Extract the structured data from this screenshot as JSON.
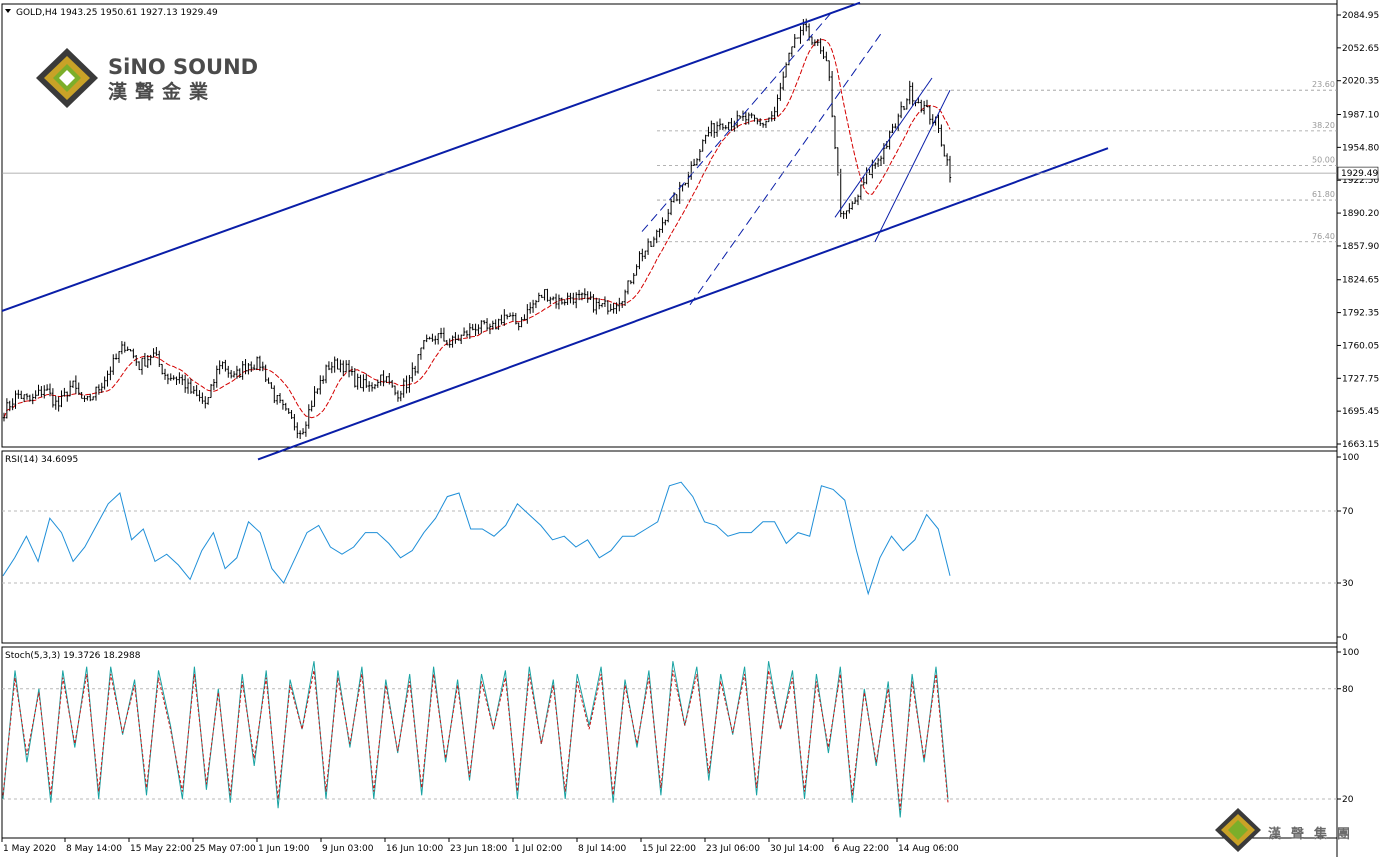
{
  "header": {
    "symbol_label": "GOLD,H4  1943.25 1950.61 1927.13 1929.49",
    "rsi_label": "RSI(14) 34.6095",
    "stoch_label": "Stoch(5,3,3) 19.3726 18.2988"
  },
  "logo": {
    "brand_en": "SiNO SOUND",
    "brand_cn": "漢聲金業",
    "footer_cn": "漢聲集團"
  },
  "colors": {
    "candle": "#000000",
    "ma": "#d40000",
    "channel": "#0a1ea8",
    "rsi": "#1f8fd8",
    "stoch_main": "#1aa3a3",
    "stoch_signal": "#c81818",
    "grid": "#b8b8b8",
    "logo_gold": "#c9a227"
  },
  "chart_data": [
    {
      "type": "candlestick",
      "title": "GOLD,H4",
      "ohlc_current": {
        "open": 1943.25,
        "high": 1950.61,
        "low": 1927.13,
        "close": 1929.49
      },
      "ylim": [
        1650,
        2098
      ],
      "y_ticks": [
        "2084.95",
        "2052.65",
        "2020.35",
        "1987.10",
        "1954.80",
        "1922.50",
        "1890.20",
        "1857.90",
        "1824.65",
        "1792.35",
        "1760.05",
        "1727.75",
        "1695.45",
        "1663.15"
      ],
      "current_price": "1929.49",
      "x_ticks": [
        "1 May 2020",
        "8 May 14:00",
        "15 May 22:00",
        "25 May 07:00",
        "1 Jun 19:00",
        "9 Jun 03:00",
        "16 Jun 10:00",
        "23 Jun 18:00",
        "1 Jul 02:00",
        "8 Jul 14:00",
        "15 Jul 22:00",
        "23 Jul 06:00",
        "30 Jul 14:00",
        "6 Aug 22:00",
        "14 Aug 06:00"
      ],
      "fib_levels": [
        {
          "label": "23.60",
          "price": 2011
        },
        {
          "label": "38.20",
          "price": 1971
        },
        {
          "label": "50.00",
          "price": 1937
        },
        {
          "label": "61.80",
          "price": 1903
        },
        {
          "label": "76.40",
          "price": 1862
        }
      ],
      "price_path": [
        1695,
        1712,
        1705,
        1718,
        1700,
        1722,
        1702,
        1718,
        1740,
        1762,
        1740,
        1752,
        1730,
        1728,
        1712,
        1702,
        1745,
        1728,
        1742,
        1742,
        1710,
        1690,
        1675,
        1712,
        1740,
        1742,
        1725,
        1718,
        1732,
        1712,
        1726,
        1758,
        1770,
        1762,
        1770,
        1780,
        1774,
        1790,
        1781,
        1798,
        1812,
        1803,
        1808,
        1805,
        1798,
        1800,
        1812,
        1848,
        1860,
        1890,
        1912,
        1940,
        1968,
        1980,
        1980,
        1983,
        1977,
        1988,
        2040,
        2072,
        2060,
        2030,
        1882,
        1902,
        1930,
        1950,
        1978,
        2010,
        1995,
        1978,
        1931
      ]
    },
    {
      "type": "line",
      "title": "RSI(14) 34.6095",
      "ylim": [
        0,
        100
      ],
      "y_ticks": [
        "100",
        "70",
        "30",
        "0"
      ],
      "levels": [
        70,
        30
      ],
      "values": [
        34,
        44,
        56,
        42,
        66,
        58,
        42,
        50,
        62,
        74,
        80,
        54,
        60,
        42,
        46,
        40,
        32,
        48,
        58,
        38,
        44,
        64,
        58,
        38,
        30,
        44,
        58,
        62,
        50,
        46,
        50,
        58,
        58,
        52,
        44,
        48,
        58,
        66,
        78,
        80,
        60,
        60,
        56,
        62,
        74,
        68,
        62,
        54,
        56,
        50,
        54,
        44,
        48,
        56,
        56,
        60,
        64,
        84,
        86,
        78,
        64,
        62,
        56,
        58,
        58,
        64,
        64,
        52,
        58,
        56,
        84,
        82,
        76,
        48,
        24,
        44,
        56,
        48,
        54,
        68,
        60,
        34
      ]
    },
    {
      "type": "line",
      "title": "Stoch(5,3,3) 19.3726 18.2988",
      "ylim": [
        0,
        100
      ],
      "y_ticks": [
        "100",
        "80",
        "20"
      ],
      "levels": [
        80,
        20
      ],
      "series": [
        {
          "values": [
            20,
            90,
            40,
            80,
            18,
            90,
            48,
            92,
            20,
            92,
            55,
            85,
            22,
            90,
            60,
            20,
            92,
            25,
            80,
            18,
            88,
            38,
            90,
            15,
            85,
            58,
            95,
            20,
            90,
            48,
            92,
            20,
            85,
            45,
            88,
            22,
            92,
            40,
            85,
            30,
            88,
            58,
            90,
            20,
            92,
            50,
            85,
            20,
            88,
            60,
            92,
            18,
            85,
            48,
            90,
            22,
            95,
            60,
            92,
            30,
            88,
            55,
            92,
            22,
            95,
            58,
            90,
            20,
            88,
            45,
            92,
            18,
            80,
            38,
            84,
            10,
            88,
            40,
            92,
            20
          ]
        },
        {
          "values": [
            22,
            86,
            44,
            78,
            22,
            86,
            50,
            88,
            24,
            88,
            56,
            82,
            26,
            86,
            58,
            24,
            88,
            28,
            78,
            22,
            84,
            42,
            86,
            20,
            82,
            58,
            90,
            24,
            86,
            50,
            88,
            24,
            82,
            46,
            84,
            26,
            88,
            42,
            82,
            32,
            84,
            58,
            86,
            24,
            88,
            50,
            82,
            24,
            84,
            58,
            88,
            22,
            82,
            50,
            86,
            26,
            90,
            60,
            88,
            34,
            84,
            56,
            88,
            26,
            90,
            58,
            86,
            24,
            84,
            48,
            88,
            22,
            78,
            40,
            80,
            14,
            84,
            42,
            88,
            18
          ]
        }
      ]
    }
  ]
}
